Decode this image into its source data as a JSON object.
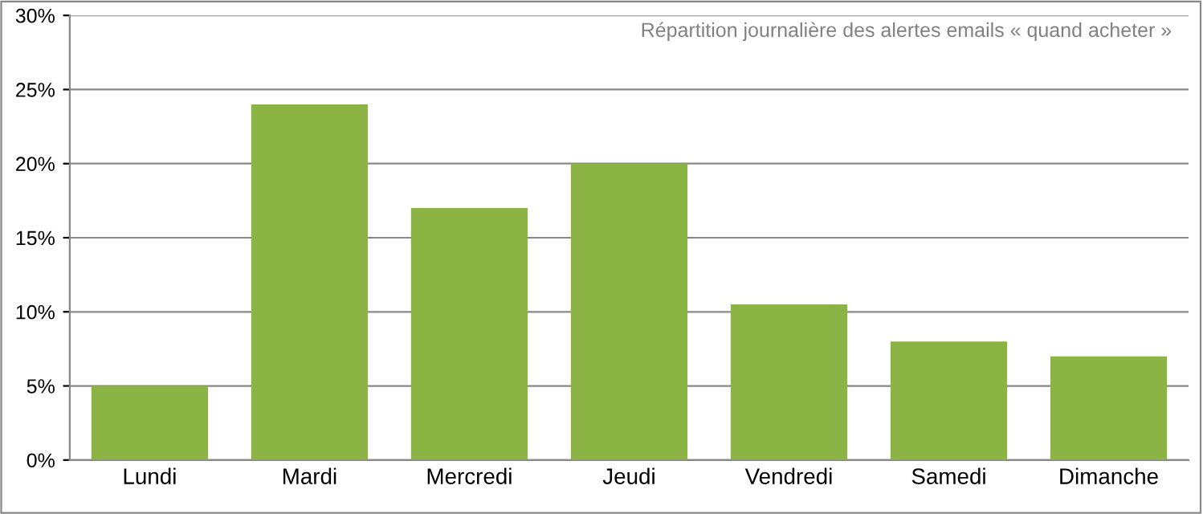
{
  "chart_data": {
    "type": "bar",
    "title": "Répartition journalière des alertes emails « quand acheter »",
    "categories": [
      "Lundi",
      "Mardi",
      "Mercredi",
      "Jeudi",
      "Vendredi",
      "Samedi",
      "Dimanche"
    ],
    "values": [
      5,
      24,
      17,
      20,
      10.5,
      8,
      7
    ],
    "color": "#8bb444",
    "ylim": [
      0,
      30
    ],
    "yticks": [
      {
        "value": 0,
        "label": "0%"
      },
      {
        "value": 5,
        "label": "5%"
      },
      {
        "value": 10,
        "label": "10%"
      },
      {
        "value": 15,
        "label": "15%"
      },
      {
        "value": 20,
        "label": "20%"
      },
      {
        "value": 25,
        "label": "25%"
      },
      {
        "value": 30,
        "label": "30%"
      }
    ],
    "grid": "y"
  }
}
